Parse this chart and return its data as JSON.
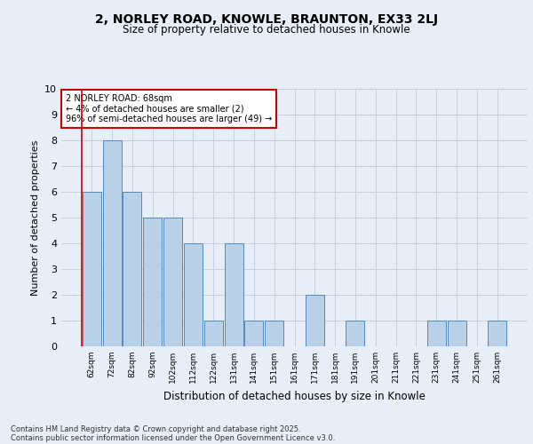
{
  "title_line1": "2, NORLEY ROAD, KNOWLE, BRAUNTON, EX33 2LJ",
  "title_line2": "Size of property relative to detached houses in Knowle",
  "xlabel": "Distribution of detached houses by size in Knowle",
  "ylabel": "Number of detached properties",
  "bins": [
    "62sqm",
    "72sqm",
    "82sqm",
    "92sqm",
    "102sqm",
    "112sqm",
    "122sqm",
    "131sqm",
    "141sqm",
    "151sqm",
    "161sqm",
    "171sqm",
    "181sqm",
    "191sqm",
    "201sqm",
    "211sqm",
    "221sqm",
    "231sqm",
    "241sqm",
    "251sqm",
    "261sqm"
  ],
  "values": [
    6,
    8,
    6,
    5,
    5,
    4,
    1,
    4,
    1,
    1,
    0,
    2,
    0,
    1,
    0,
    0,
    0,
    1,
    1,
    0,
    1
  ],
  "bar_color": "#b8d0e8",
  "bar_edge_color": "#5588bb",
  "highlight_color": "#cc0000",
  "annotation_text": "2 NORLEY ROAD: 68sqm\n← 4% of detached houses are smaller (2)\n96% of semi-detached houses are larger (49) →",
  "annotation_box_color": "#ffffff",
  "annotation_box_edge": "#cc0000",
  "footer_line1": "Contains HM Land Registry data © Crown copyright and database right 2025.",
  "footer_line2": "Contains public sector information licensed under the Open Government Licence v3.0.",
  "bg_color": "#e8eef8",
  "plot_bg_color": "#e8eef8",
  "grid_color": "#c8d0e0",
  "ylim": [
    0,
    10
  ],
  "yticks": [
    0,
    1,
    2,
    3,
    4,
    5,
    6,
    7,
    8,
    9,
    10
  ]
}
